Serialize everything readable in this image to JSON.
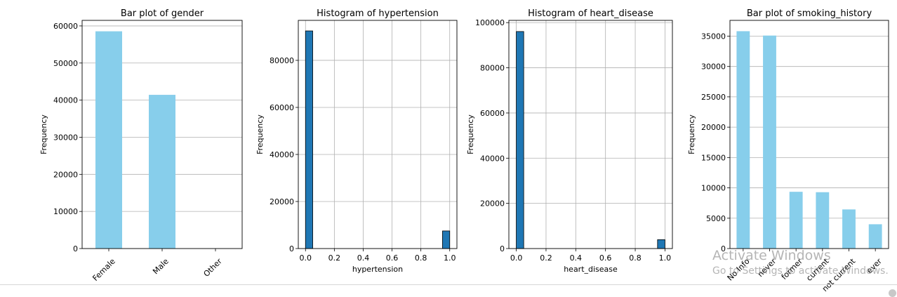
{
  "chart_data": [
    {
      "type": "bar",
      "title": "Bar plot of gender",
      "xlabel": "",
      "ylabel": "Frequency",
      "categories": [
        "Female",
        "Male",
        "Other"
      ],
      "values": [
        58552,
        41430,
        18
      ],
      "ylim": [
        0,
        61500
      ],
      "yticks": [
        0,
        10000,
        20000,
        30000,
        40000,
        50000,
        60000
      ],
      "grid": "y",
      "color": "#87CEEB"
    },
    {
      "type": "histogram",
      "title": "Histogram of hypertension",
      "xlabel": "hypertension",
      "ylabel": "Frequency",
      "bins": [
        {
          "x0": 0.0,
          "x1": 0.05,
          "count": 92515
        },
        {
          "x0": 0.95,
          "x1": 1.0,
          "count": 7485
        }
      ],
      "xlim": [
        -0.05,
        1.05
      ],
      "ylim": [
        0,
        97000
      ],
      "xticks": [
        0.0,
        0.2,
        0.4,
        0.6,
        0.8,
        1.0
      ],
      "yticks": [
        0,
        20000,
        40000,
        60000,
        80000
      ],
      "grid": "both",
      "color": "#1f77b4"
    },
    {
      "type": "histogram",
      "title": "Histogram of heart_disease",
      "xlabel": "heart_disease",
      "ylabel": "Frequency",
      "bins": [
        {
          "x0": 0.0,
          "x1": 0.05,
          "count": 96058
        },
        {
          "x0": 0.95,
          "x1": 1.0,
          "count": 3942
        }
      ],
      "xlim": [
        -0.05,
        1.05
      ],
      "ylim": [
        0,
        101000
      ],
      "xticks": [
        0.0,
        0.2,
        0.4,
        0.6,
        0.8,
        1.0
      ],
      "yticks": [
        0,
        20000,
        40000,
        60000,
        80000,
        100000
      ],
      "grid": "both",
      "color": "#1f77b4"
    },
    {
      "type": "bar",
      "title": "Bar plot of smoking_history",
      "xlabel": "",
      "ylabel": "Frequency",
      "categories": [
        "No Info",
        "never",
        "former",
        "current",
        "not current",
        "ever"
      ],
      "values": [
        35816,
        35095,
        9352,
        9286,
        6447,
        4004
      ],
      "ylim": [
        0,
        37600
      ],
      "yticks": [
        0,
        5000,
        10000,
        15000,
        20000,
        25000,
        30000,
        35000
      ],
      "grid": "y",
      "color": "#87CEEB"
    }
  ],
  "overlay": {
    "watermark_title": "Activate Windows",
    "watermark_subtitle": "Go to Settings to activate Windows."
  }
}
